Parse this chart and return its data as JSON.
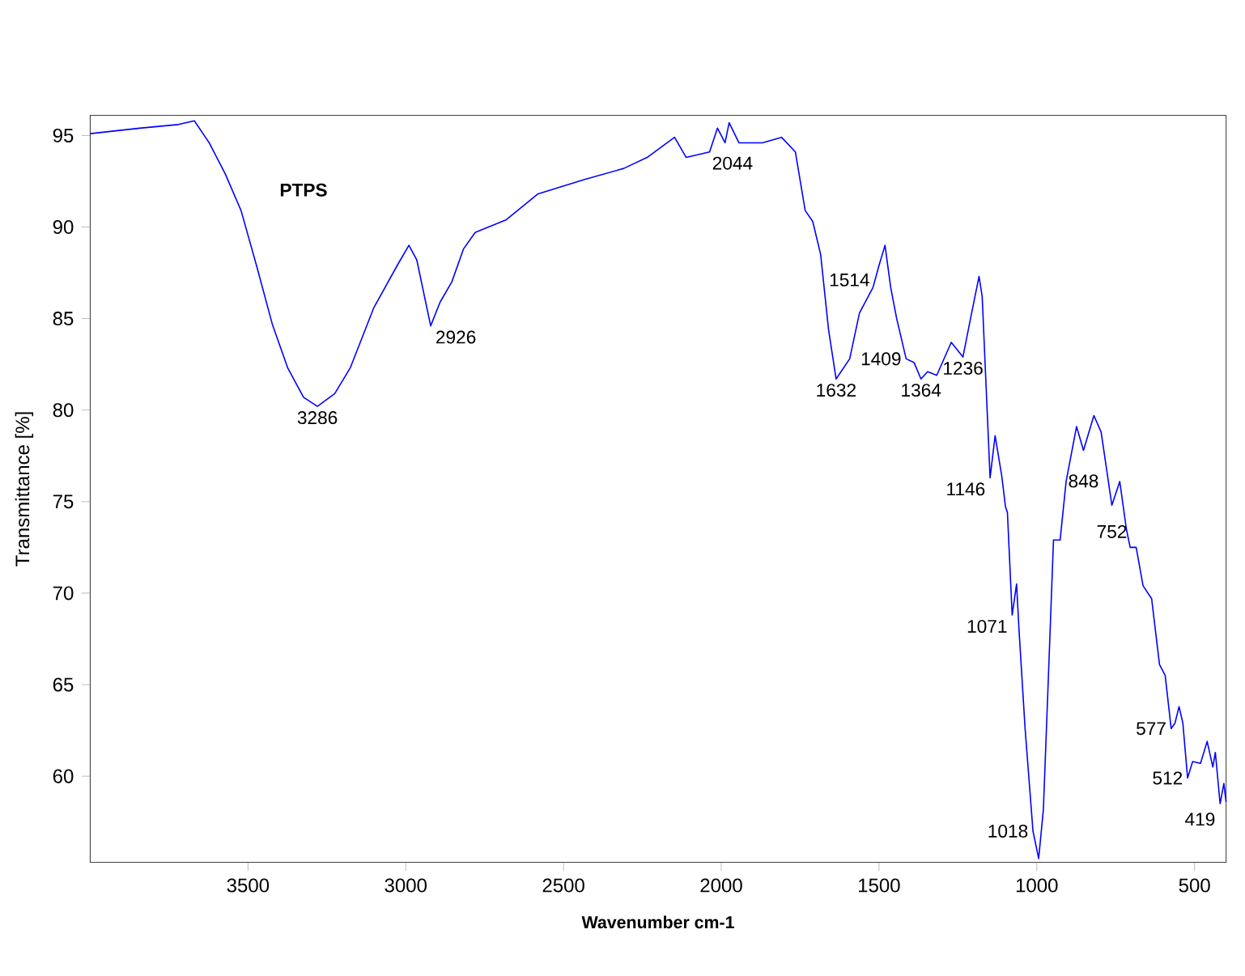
{
  "chart_data": {
    "type": "line",
    "xlabel": "Wavenumber cm-1",
    "ylabel": "Transmittance [%]",
    "xlim": [
      4000,
      400
    ],
    "ylim": [
      55.3,
      96.1
    ],
    "xticks": [
      3500,
      3000,
      2500,
      2000,
      1500,
      1000,
      500
    ],
    "yticks": [
      60,
      65,
      70,
      75,
      80,
      85,
      90,
      95
    ],
    "grid": false,
    "series": [
      {
        "name": "PTPS",
        "color": "#0000ff",
        "x": [
          4000,
          3843,
          3720,
          3670,
          3623,
          3572,
          3522,
          3473,
          3423,
          3374,
          3324,
          3280,
          3225,
          3176,
          3101,
          3027,
          2990,
          2965,
          2921,
          2891,
          2854,
          2817,
          2780,
          2681,
          2582,
          2433,
          2309,
          2235,
          2148,
          2111,
          2037,
          2012,
          1988,
          1975,
          1944,
          1870,
          1809,
          1765,
          1734,
          1710,
          1685,
          1660,
          1636,
          1593,
          1562,
          1519,
          1500,
          1481,
          1463,
          1444,
          1414,
          1389,
          1367,
          1346,
          1317,
          1271,
          1234,
          1210,
          1183,
          1173,
          1148,
          1132,
          1111,
          1099,
          1093,
          1078,
          1064,
          1056,
          1037,
          1012,
          994,
          979,
          963,
          947,
          926,
          907,
          874,
          852,
          819,
          796,
          762,
          737,
          716,
          704,
          685,
          663,
          636,
          611,
          593,
          574,
          562,
          549,
          537,
          522,
          506,
          481,
          460,
          442,
          434,
          419,
          407,
          400
        ],
        "values": [
          95.1,
          95.4,
          95.6,
          95.8,
          94.6,
          92.9,
          90.9,
          87.9,
          84.7,
          82.3,
          80.7,
          80.2,
          80.9,
          82.3,
          85.6,
          87.9,
          89.0,
          88.2,
          84.6,
          85.9,
          87.0,
          88.8,
          89.7,
          90.4,
          91.8,
          92.6,
          93.2,
          93.8,
          94.9,
          93.8,
          94.1,
          95.4,
          94.6,
          95.7,
          94.6,
          94.6,
          94.9,
          94.1,
          90.9,
          90.3,
          88.5,
          84.4,
          81.7,
          82.8,
          85.3,
          86.7,
          87.9,
          89.0,
          86.7,
          85.0,
          82.8,
          82.6,
          81.7,
          82.1,
          81.9,
          83.7,
          82.9,
          85.0,
          87.3,
          86.2,
          76.3,
          78.6,
          76.4,
          74.7,
          74.4,
          68.8,
          70.5,
          67.9,
          62.6,
          57.0,
          55.5,
          58.2,
          65.5,
          72.9,
          72.9,
          76.1,
          79.1,
          77.8,
          79.7,
          78.8,
          74.8,
          76.1,
          73.5,
          72.5,
          72.5,
          70.4,
          69.7,
          66.1,
          65.5,
          62.6,
          62.9,
          63.8,
          62.9,
          59.9,
          60.8,
          60.7,
          61.9,
          60.5,
          61.3,
          58.5,
          59.6,
          58.6
        ]
      }
    ],
    "annotations": [
      {
        "text": "3286",
        "x": 3280,
        "y": 80.2
      },
      {
        "text": "2926",
        "x": 2921,
        "y": 84.6
      },
      {
        "text": "2044",
        "x": 2044,
        "y": 94.1
      },
      {
        "text": "1632",
        "x": 1636,
        "y": 81.7
      },
      {
        "text": "1514",
        "x": 1514,
        "y": 86.5
      },
      {
        "text": "1409",
        "x": 1414,
        "y": 82.8
      },
      {
        "text": "1364",
        "x": 1367,
        "y": 81.7
      },
      {
        "text": "1236",
        "x": 1234,
        "y": 82.9
      },
      {
        "text": "1146",
        "x": 1148,
        "y": 76.3
      },
      {
        "text": "1071",
        "x": 1078,
        "y": 68.8
      },
      {
        "text": "1018",
        "x": 1012,
        "y": 57.0
      },
      {
        "text": "848",
        "x": 852,
        "y": 77.8
      },
      {
        "text": "752",
        "x": 762,
        "y": 74.8
      },
      {
        "text": "577",
        "x": 574,
        "y": 62.6
      },
      {
        "text": "512",
        "x": 522,
        "y": 59.9
      },
      {
        "text": "419",
        "x": 419,
        "y": 58.5
      }
    ]
  }
}
